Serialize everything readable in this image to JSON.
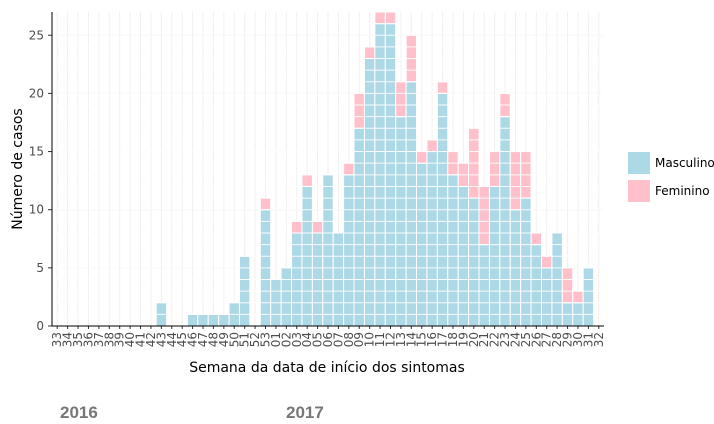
{
  "chart_data": {
    "type": "stacked_bar",
    "x_label": "Semana da data de início dos sintomas",
    "y_label": "Número de casos",
    "categories": [
      "33",
      "34",
      "35",
      "36",
      "37",
      "38",
      "39",
      "40",
      "41",
      "42",
      "43",
      "44",
      "45",
      "46",
      "47",
      "48",
      "49",
      "50",
      "51",
      "52",
      "53",
      "01",
      "02",
      "03",
      "04",
      "05",
      "06",
      "07",
      "08",
      "09",
      "10",
      "11",
      "12",
      "13",
      "14",
      "15",
      "16",
      "17",
      "18",
      "19",
      "20",
      "21",
      "22",
      "23",
      "24",
      "25",
      "26",
      "27",
      "28",
      "29",
      "30",
      "31",
      "32"
    ],
    "series": [
      {
        "name": "Masculino",
        "color": "#add8e6",
        "values": [
          0,
          0,
          0,
          0,
          0,
          0,
          0,
          0,
          0,
          0,
          2,
          0,
          0,
          1,
          1,
          1,
          1,
          2,
          6,
          0,
          10,
          4,
          5,
          8,
          12,
          8,
          13,
          8,
          13,
          17,
          23,
          26,
          26,
          18,
          21,
          14,
          15,
          20,
          13,
          12,
          11,
          7,
          12,
          18,
          10,
          11,
          7,
          5,
          8,
          2,
          2,
          5,
          0
        ]
      },
      {
        "name": "Feminino",
        "color": "#ffc0cb",
        "values": [
          0,
          0,
          0,
          0,
          0,
          0,
          0,
          0,
          0,
          0,
          0,
          0,
          0,
          0,
          0,
          0,
          0,
          0,
          0,
          0,
          1,
          0,
          0,
          1,
          1,
          1,
          0,
          0,
          1,
          3,
          1,
          1,
          1,
          3,
          4,
          1,
          1,
          1,
          2,
          2,
          6,
          5,
          3,
          2,
          5,
          4,
          1,
          1,
          0,
          3,
          1,
          0,
          0
        ]
      }
    ],
    "ylim": [
      0,
      27
    ],
    "yticks": [
      0,
      5,
      10,
      15,
      20,
      25
    ],
    "grid": true,
    "legend": "right",
    "annotations": [
      "2016",
      "2017"
    ]
  }
}
